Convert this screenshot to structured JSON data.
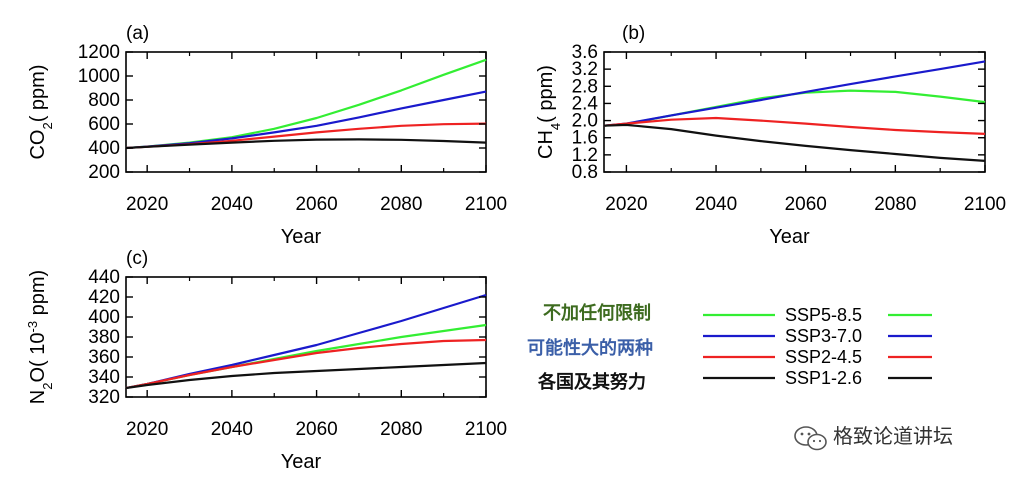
{
  "chart_data": [
    {
      "type": "line",
      "panel": "(a)",
      "xlabel": "Year",
      "ylabel": "CO2( ppm)",
      "ylabel_main": "CO",
      "ylabel_sub": "2",
      "ylabel_tail": "( ppm)",
      "xlim": [
        2015,
        2100
      ],
      "ylim": [
        200,
        1200
      ],
      "xticks": [
        2020,
        2040,
        2060,
        2080,
        2100
      ],
      "yticks": [
        200,
        400,
        600,
        800,
        1000,
        1200
      ],
      "grid": false,
      "series": [
        {
          "name": "SSP5-8.5",
          "color": "#33ee33",
          "x": [
            2015,
            2020,
            2030,
            2040,
            2050,
            2060,
            2070,
            2080,
            2090,
            2100
          ],
          "values": [
            400,
            412,
            445,
            490,
            560,
            650,
            760,
            880,
            1010,
            1135
          ]
        },
        {
          "name": "SSP3-7.0",
          "color": "#1a1acc",
          "x": [
            2015,
            2020,
            2030,
            2040,
            2050,
            2060,
            2070,
            2080,
            2090,
            2100
          ],
          "values": [
            400,
            412,
            440,
            480,
            530,
            585,
            655,
            730,
            800,
            870
          ]
        },
        {
          "name": "SSP2-4.5",
          "color": "#ee2222",
          "x": [
            2015,
            2020,
            2030,
            2040,
            2050,
            2060,
            2070,
            2080,
            2090,
            2100
          ],
          "values": [
            400,
            410,
            432,
            460,
            495,
            530,
            560,
            585,
            598,
            603
          ]
        },
        {
          "name": "SSP1-2.6",
          "color": "#111111",
          "x": [
            2015,
            2020,
            2030,
            2040,
            2050,
            2060,
            2070,
            2080,
            2090,
            2100
          ],
          "values": [
            400,
            410,
            428,
            445,
            460,
            470,
            472,
            468,
            458,
            445
          ]
        }
      ]
    },
    {
      "type": "line",
      "panel": "(b)",
      "xlabel": "Year",
      "ylabel": "CH4( ppm)",
      "ylabel_main": "CH",
      "ylabel_sub": "4",
      "ylabel_tail": "( ppm)",
      "xlim": [
        2015,
        2100
      ],
      "ylim": [
        0.8,
        3.6
      ],
      "xticks": [
        2020,
        2040,
        2060,
        2080,
        2100
      ],
      "yticks": [
        "0.8",
        "1.2",
        "1.6",
        "2.0",
        "2.4",
        "2.8",
        "3.2",
        "3.6"
      ],
      "grid": false,
      "series": [
        {
          "name": "SSP5-8.5",
          "color": "#33ee33",
          "x": [
            2015,
            2020,
            2030,
            2040,
            2050,
            2060,
            2070,
            2080,
            2090,
            2100
          ],
          "values": [
            1.88,
            1.92,
            2.12,
            2.32,
            2.52,
            2.65,
            2.7,
            2.67,
            2.56,
            2.43
          ]
        },
        {
          "name": "SSP3-7.0",
          "color": "#1a1acc",
          "x": [
            2015,
            2020,
            2030,
            2040,
            2050,
            2060,
            2070,
            2080,
            2090,
            2100
          ],
          "values": [
            1.88,
            1.93,
            2.12,
            2.3,
            2.48,
            2.67,
            2.85,
            3.03,
            3.2,
            3.38
          ]
        },
        {
          "name": "SSP2-4.5",
          "color": "#ee2222",
          "x": [
            2015,
            2020,
            2030,
            2040,
            2050,
            2060,
            2070,
            2080,
            2090,
            2100
          ],
          "values": [
            1.88,
            1.93,
            2.02,
            2.06,
            2.0,
            1.93,
            1.85,
            1.78,
            1.73,
            1.69
          ]
        },
        {
          "name": "SSP1-2.6",
          "color": "#111111",
          "x": [
            2015,
            2020,
            2030,
            2040,
            2050,
            2060,
            2070,
            2080,
            2090,
            2100
          ],
          "values": [
            1.88,
            1.9,
            1.8,
            1.65,
            1.52,
            1.41,
            1.31,
            1.22,
            1.13,
            1.06
          ]
        }
      ]
    },
    {
      "type": "line",
      "panel": "(c)",
      "xlabel": "Year",
      "ylabel": "N2O( 10-3 ppm)",
      "ylabel_main": "N",
      "ylabel_sub": "2",
      "ylabel_mid": "O( 10",
      "ylabel_sup": "-3",
      "ylabel_tail": " ppm)",
      "xlim": [
        2015,
        2100
      ],
      "ylim": [
        320,
        440
      ],
      "xticks": [
        2020,
        2040,
        2060,
        2080,
        2100
      ],
      "yticks": [
        320,
        340,
        360,
        380,
        400,
        420,
        440
      ],
      "grid": false,
      "series": [
        {
          "name": "SSP5-8.5",
          "color": "#33ee33",
          "x": [
            2015,
            2020,
            2030,
            2040,
            2050,
            2060,
            2070,
            2080,
            2090,
            2100
          ],
          "values": [
            329,
            333,
            342,
            350,
            358,
            366,
            373,
            380,
            386,
            392
          ]
        },
        {
          "name": "SSP3-7.0",
          "color": "#1a1acc",
          "x": [
            2015,
            2020,
            2030,
            2040,
            2050,
            2060,
            2070,
            2080,
            2090,
            2100
          ],
          "values": [
            329,
            333,
            343,
            352,
            362,
            372,
            384,
            396,
            409,
            422
          ]
        },
        {
          "name": "SSP2-4.5",
          "color": "#ee2222",
          "x": [
            2015,
            2020,
            2030,
            2040,
            2050,
            2060,
            2070,
            2080,
            2090,
            2100
          ],
          "values": [
            329,
            333,
            342,
            350,
            357,
            364,
            369,
            373,
            376,
            377
          ]
        },
        {
          "name": "SSP1-2.6",
          "color": "#111111",
          "x": [
            2015,
            2020,
            2030,
            2040,
            2050,
            2060,
            2070,
            2080,
            2090,
            2100
          ],
          "values": [
            329,
            332,
            337,
            341,
            344,
            346,
            348,
            350,
            352,
            354
          ]
        }
      ]
    }
  ],
  "legend": {
    "placement": "bottom-right",
    "items": [
      {
        "label": "SSP5-8.5",
        "color": "#33ee33"
      },
      {
        "label": "SSP3-7.0",
        "color": "#1a1acc"
      },
      {
        "label": "SSP2-4.5",
        "color": "#ee2222"
      },
      {
        "label": "SSP1-2.6",
        "color": "#111111"
      }
    ]
  },
  "annotations": [
    {
      "text": "不加任何限制",
      "color": "#3d6b1f"
    },
    {
      "text": "可能性大的两种",
      "color": "#3b5fa8"
    },
    {
      "text": "各国及其努力",
      "color": "#111111"
    }
  ],
  "watermark": {
    "text": "格致论道讲坛",
    "icon": "wechat-icon"
  }
}
